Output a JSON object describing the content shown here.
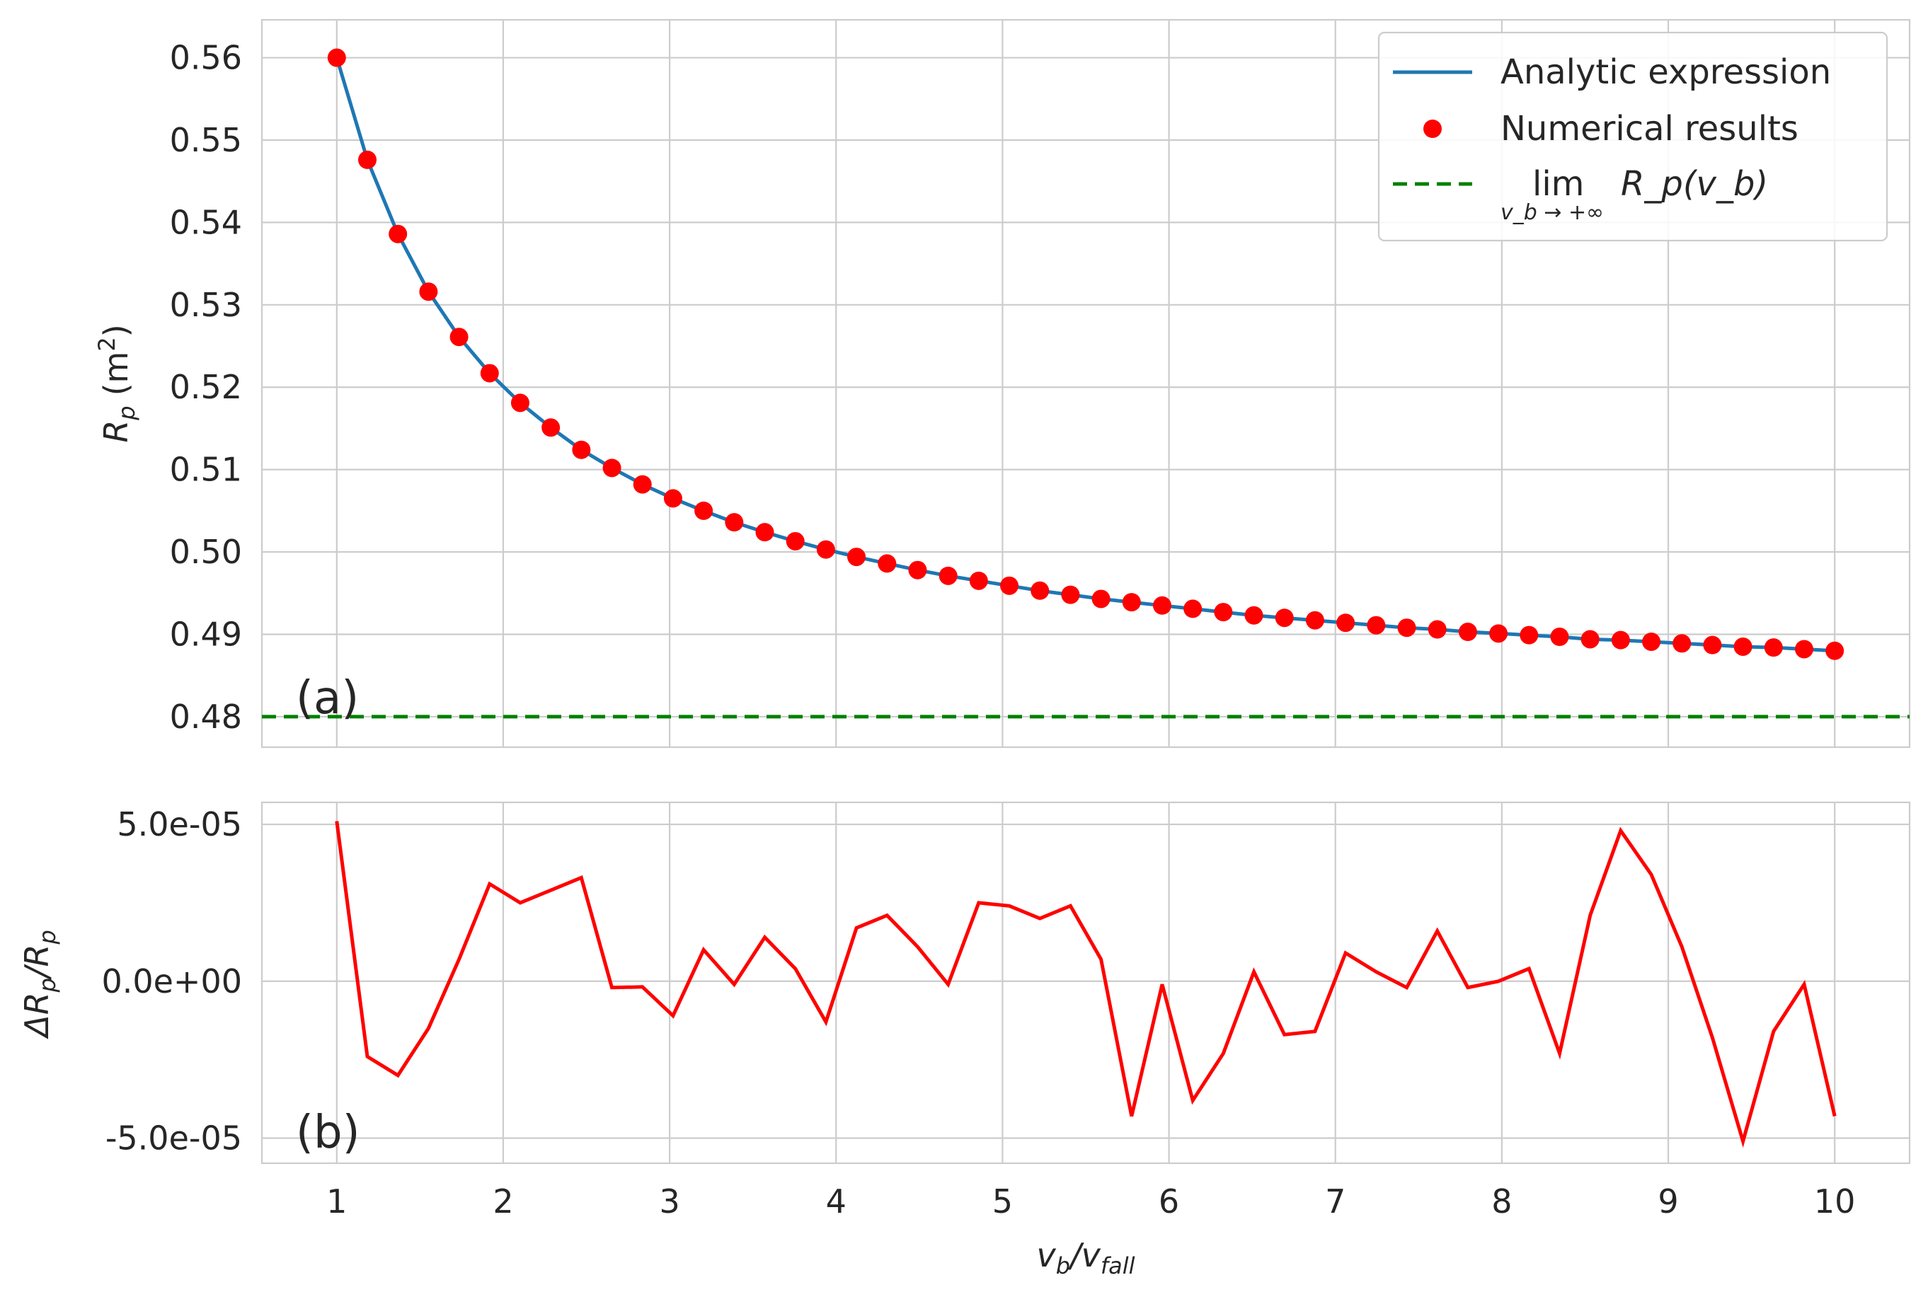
{
  "chart_data": [
    {
      "type": "line",
      "panel_label": "(a)",
      "xlabel": "",
      "ylabel_main": "R",
      "ylabel_sub": "p",
      "ylabel_unit": "(m",
      "ylabel_unit_sup": "2",
      "ylabel_unit_close": ")",
      "xlim": [
        0.55,
        10.45
      ],
      "ylim": [
        0.4763,
        0.5646
      ],
      "yticks": [
        0.48,
        0.49,
        0.5,
        0.51,
        0.52,
        0.53,
        0.54,
        0.55,
        0.56
      ],
      "ytick_labels": [
        "0.48",
        "0.49",
        "0.50",
        "0.51",
        "0.52",
        "0.53",
        "0.54",
        "0.55",
        "0.56"
      ],
      "grid": true,
      "legend_position": "top-right",
      "legend": [
        {
          "label": "Analytic expression",
          "kind": "line",
          "color": "#1f77b4"
        },
        {
          "label": "Numerical results",
          "kind": "marker",
          "color": "#ff0000"
        },
        {
          "label": "lim",
          "label_sub": "v_b → +∞",
          "label_expr": "R_p(v_b)",
          "kind": "dashed",
          "color": "#008000"
        }
      ],
      "series": [
        {
          "name": "Analytic expression",
          "color": "#1f77b4",
          "x": [
            1.0,
            1.1837,
            1.3673,
            1.551,
            1.7347,
            1.9184,
            2.102,
            2.2857,
            2.4694,
            2.6531,
            2.8367,
            3.0204,
            3.2041,
            3.3878,
            3.5714,
            3.7551,
            3.9388,
            4.1224,
            4.3061,
            4.4898,
            4.6735,
            4.8571,
            5.0408,
            5.2245,
            5.4082,
            5.5918,
            5.7755,
            5.9592,
            6.1429,
            6.3265,
            6.5102,
            6.6939,
            6.8776,
            7.0612,
            7.2449,
            7.4286,
            7.6122,
            7.7959,
            7.9796,
            8.1633,
            8.3469,
            8.5306,
            8.7143,
            8.898,
            9.0816,
            9.2653,
            9.449,
            9.6327,
            9.8163,
            10.0
          ],
          "y": [
            0.56,
            0.5476,
            0.5386,
            0.5316,
            0.5261,
            0.5217,
            0.5181,
            0.5151,
            0.5124,
            0.5102,
            0.5082,
            0.5065,
            0.505,
            0.5036,
            0.5024,
            0.5013,
            0.5003,
            0.4994,
            0.4986,
            0.4978,
            0.4971,
            0.4965,
            0.4959,
            0.4953,
            0.4948,
            0.4943,
            0.4939,
            0.4935,
            0.4931,
            0.4927,
            0.4923,
            0.492,
            0.4917,
            0.4914,
            0.4911,
            0.4908,
            0.4906,
            0.4903,
            0.4901,
            0.4899,
            0.4897,
            0.4894,
            0.4893,
            0.4891,
            0.4889,
            0.4887,
            0.4885,
            0.4884,
            0.4882,
            0.488
          ]
        },
        {
          "name": "Numerical results",
          "color": "#ff0000",
          "x": [
            1.0,
            1.1837,
            1.3673,
            1.551,
            1.7347,
            1.9184,
            2.102,
            2.2857,
            2.4694,
            2.6531,
            2.8367,
            3.0204,
            3.2041,
            3.3878,
            3.5714,
            3.7551,
            3.9388,
            4.1224,
            4.3061,
            4.4898,
            4.6735,
            4.8571,
            5.0408,
            5.2245,
            5.4082,
            5.5918,
            5.7755,
            5.9592,
            6.1429,
            6.3265,
            6.5102,
            6.6939,
            6.8776,
            7.0612,
            7.2449,
            7.4286,
            7.6122,
            7.7959,
            7.9796,
            8.1633,
            8.3469,
            8.5306,
            8.7143,
            8.898,
            9.0816,
            9.2653,
            9.449,
            9.6327,
            9.8163,
            10.0
          ],
          "y": [
            0.56,
            0.5476,
            0.5386,
            0.5316,
            0.5261,
            0.5217,
            0.5181,
            0.5151,
            0.5124,
            0.5102,
            0.5082,
            0.5065,
            0.505,
            0.5036,
            0.5024,
            0.5013,
            0.5003,
            0.4994,
            0.4986,
            0.4978,
            0.4971,
            0.4965,
            0.4959,
            0.4953,
            0.4948,
            0.4943,
            0.4939,
            0.4935,
            0.4931,
            0.4927,
            0.4923,
            0.492,
            0.4917,
            0.4914,
            0.4911,
            0.4908,
            0.4906,
            0.4903,
            0.4901,
            0.4899,
            0.4897,
            0.4894,
            0.4893,
            0.4891,
            0.4889,
            0.4887,
            0.4885,
            0.4884,
            0.4882,
            0.488
          ]
        },
        {
          "name": "lim",
          "color": "#008000",
          "y_constant": 0.48
        }
      ]
    },
    {
      "type": "line",
      "panel_label": "(b)",
      "xlabel_main": "v",
      "xlabel_sub": "b",
      "xlabel_slash": "/v",
      "xlabel_sub2": "fall",
      "ylabel_main": "ΔR",
      "ylabel_sub": "p",
      "ylabel_mid": "/R",
      "ylabel_sub2": "p",
      "xlim": [
        0.55,
        10.45
      ],
      "ylim": [
        -5.8e-05,
        5.7e-05
      ],
      "xticks": [
        1,
        2,
        3,
        4,
        5,
        6,
        7,
        8,
        9,
        10
      ],
      "xtick_labels": [
        "1",
        "2",
        "3",
        "4",
        "5",
        "6",
        "7",
        "8",
        "9",
        "10"
      ],
      "yticks": [
        -5e-05,
        0.0,
        5e-05
      ],
      "ytick_labels": [
        "-5.0e-05",
        "0.0e+00",
        "5.0e-05"
      ],
      "grid": true,
      "series": [
        {
          "name": "",
          "color": "#ff0000",
          "x": [
            1.0,
            1.1837,
            1.3673,
            1.551,
            1.7347,
            1.9184,
            2.102,
            2.2857,
            2.4694,
            2.6531,
            2.8367,
            3.0204,
            3.2041,
            3.3878,
            3.5714,
            3.7551,
            3.9388,
            4.1224,
            4.3061,
            4.4898,
            4.6735,
            4.8571,
            5.0408,
            5.2245,
            5.4082,
            5.5918,
            5.7755,
            5.9592,
            6.1429,
            6.3265,
            6.5102,
            6.6939,
            6.8776,
            7.0612,
            7.2449,
            7.4286,
            7.6122,
            7.7959,
            7.9796,
            8.1633,
            8.3469,
            8.5306,
            8.7143,
            8.898,
            9.0816,
            9.2653,
            9.449,
            9.6327,
            9.8163,
            10.0
          ],
          "y": [
            5.1e-05,
            -2.4e-05,
            -3e-05,
            -1.5e-05,
            7e-06,
            3.1e-05,
            2.5e-05,
            2.9e-05,
            3.3e-05,
            -2e-06,
            -1.8e-06,
            -1.1e-05,
            1e-05,
            -1e-06,
            1.4e-05,
            4e-06,
            -1.3e-05,
            1.7e-05,
            2.1e-05,
            1.1e-05,
            -1e-06,
            2.5e-05,
            2.4e-05,
            2e-05,
            2.4e-05,
            7e-06,
            -4.3e-05,
            -1e-06,
            -3.8e-05,
            -2.3e-05,
            3e-06,
            -1.7e-05,
            -1.6e-05,
            9e-06,
            3e-06,
            -2e-06,
            1.6e-05,
            -2e-06,
            0.0,
            4e-06,
            -2.3e-05,
            2.1e-05,
            4.8e-05,
            3.4e-05,
            1.1e-05,
            -1.8e-05,
            -5.1e-05,
            -1.6e-05,
            -1e-06,
            -4.3e-05
          ]
        }
      ]
    }
  ]
}
